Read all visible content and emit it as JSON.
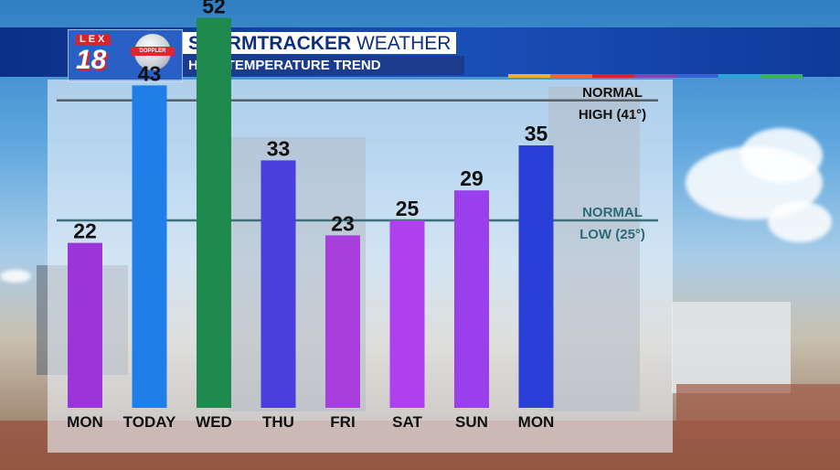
{
  "header": {
    "logo_text": "LEX 18",
    "logo_badge": "LEX 18 DOPPLER",
    "title_main": "STORMTRACKER",
    "title_suffix": "WEATHER",
    "subtitle": "HIGH TEMPERATURE TREND"
  },
  "accent_stripes": [
    "#f2b01e",
    "#e8692a",
    "#d8232a",
    "#8a3fb3",
    "#3b5fd6",
    "#2aa7d8",
    "#3ab54a"
  ],
  "chart_data": {
    "type": "bar",
    "title": "HIGH TEMPERATURE TREND",
    "categories": [
      "MON",
      "TODAY",
      "WED",
      "THU",
      "FRI",
      "SAT",
      "SUN",
      "MON"
    ],
    "values": [
      22,
      43,
      52,
      33,
      23,
      25,
      29,
      35
    ],
    "bar_colors": [
      "#9b35d8",
      "#1f7ee8",
      "#1e8a4e",
      "#4a3fdc",
      "#a83fdc",
      "#b03ff0",
      "#9a3fec",
      "#2a3fd8"
    ],
    "reference_lines": [
      {
        "label_line1": "NORMAL",
        "label_line2": "HIGH (41°)",
        "value": 41,
        "color": "#111111",
        "line_color": "#5a5f66"
      },
      {
        "label_line1": "NORMAL",
        "label_line2": "LOW (25°)",
        "value": 25,
        "color": "#2d6a78",
        "line_color": "#3f6f78"
      }
    ],
    "xlabel": "",
    "ylabel": "",
    "grid": false
  }
}
